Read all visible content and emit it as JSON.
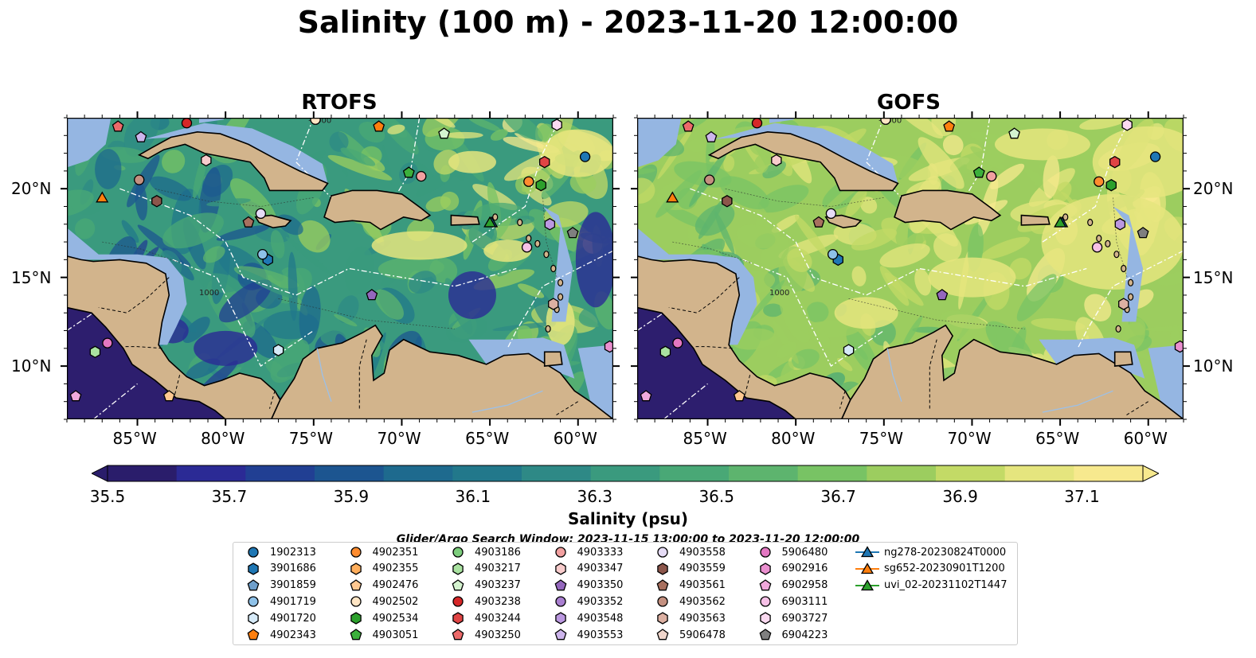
{
  "title": "Salinity (100 m) - 2023-11-20 12:00:00",
  "panels": [
    {
      "name": "RTOFS",
      "model": "rtofs"
    },
    {
      "name": "GOFS",
      "model": "gofs"
    }
  ],
  "axes": {
    "lon_ticks": [
      "85°W",
      "80°W",
      "75°W",
      "70°W",
      "65°W",
      "60°W"
    ],
    "lon_values": [
      -85,
      -80,
      -75,
      -70,
      -65,
      -60
    ],
    "lat_ticks": [
      "20°N",
      "15°N",
      "10°N"
    ],
    "lat_values": [
      20,
      15,
      10
    ],
    "lon_range": [
      -89,
      -58
    ],
    "lat_range": [
      7,
      24
    ]
  },
  "colorbar": {
    "label": "Salinity (psu)",
    "tick_labels": [
      "35.5",
      "35.7",
      "35.9",
      "36.1",
      "36.3",
      "36.5",
      "36.7",
      "36.9",
      "37.1"
    ],
    "range": [
      35.5,
      37.2
    ],
    "colors": [
      "#2a1d6b",
      "#2b2a95",
      "#213f93",
      "#1c5590",
      "#1e6a8e",
      "#22788b",
      "#2e8986",
      "#3a9a7e",
      "#49a876",
      "#5db46e",
      "#78c364",
      "#9ccd5f",
      "#c3da66",
      "#e5e57e",
      "#f7e98e"
    ]
  },
  "colors": {
    "land": "#d2b48c",
    "shelf": "#95b6e2",
    "deep_ocean": "#2d1e6e"
  },
  "map_labels": {
    "isobath": "1000",
    "rtofs_mid": "-1000",
    "gofs_mid": "-1000"
  },
  "search_window": "Glider/Argo Search Window: 2023-11-15 13:00:00 to 2023-11-20 12:00:00",
  "legend": [
    {
      "label": "1902313",
      "marker": "circle",
      "color": "#1f77b4"
    },
    {
      "label": "3901686",
      "marker": "hexagon",
      "color": "#1f77b4"
    },
    {
      "label": "3901859",
      "marker": "pentagon",
      "color": "#6f9fcb"
    },
    {
      "label": "4901719",
      "marker": "circle",
      "color": "#8ec1e8"
    },
    {
      "label": "4901720",
      "marker": "hexagon",
      "color": "#d6eaf8"
    },
    {
      "label": "4902343",
      "marker": "pentagon",
      "color": "#ff7f0e"
    },
    {
      "label": "4902351",
      "marker": "circle",
      "color": "#ff8c2e"
    },
    {
      "label": "4902355",
      "marker": "hexagon",
      "color": "#ffae5c"
    },
    {
      "label": "4902476",
      "marker": "pentagon",
      "color": "#ffc891"
    },
    {
      "label": "4902502",
      "marker": "circle",
      "color": "#ffe5c4"
    },
    {
      "label": "4902534",
      "marker": "hexagon",
      "color": "#2ca02c"
    },
    {
      "label": "4903051",
      "marker": "pentagon",
      "color": "#3cb03c"
    },
    {
      "label": "4903186",
      "marker": "circle",
      "color": "#7ccd7c"
    },
    {
      "label": "4903217",
      "marker": "hexagon",
      "color": "#a9e2a0"
    },
    {
      "label": "4903237",
      "marker": "pentagon",
      "color": "#d4f3cf"
    },
    {
      "label": "4903238",
      "marker": "circle",
      "color": "#d62728"
    },
    {
      "label": "4903244",
      "marker": "hexagon",
      "color": "#e04444"
    },
    {
      "label": "4903250",
      "marker": "pentagon",
      "color": "#ec6a6a"
    },
    {
      "label": "4903333",
      "marker": "circle",
      "color": "#f2a0a0"
    },
    {
      "label": "4903347",
      "marker": "hexagon",
      "color": "#f8cccc"
    },
    {
      "label": "4903350",
      "marker": "pentagon",
      "color": "#9467bd"
    },
    {
      "label": "4903352",
      "marker": "circle",
      "color": "#a97fd0"
    },
    {
      "label": "4903548",
      "marker": "hexagon",
      "color": "#bb98e0"
    },
    {
      "label": "4903553",
      "marker": "pentagon",
      "color": "#cdb5ec"
    },
    {
      "label": "4903558",
      "marker": "circle",
      "color": "#e6dcf6"
    },
    {
      "label": "4903559",
      "marker": "hexagon",
      "color": "#8c564b"
    },
    {
      "label": "4903561",
      "marker": "pentagon",
      "color": "#a8705f"
    },
    {
      "label": "4903562",
      "marker": "circle",
      "color": "#c49080"
    },
    {
      "label": "4903563",
      "marker": "hexagon",
      "color": "#dcb0a2"
    },
    {
      "label": "5906478",
      "marker": "pentagon",
      "color": "#f0d6cc"
    },
    {
      "label": "5906480",
      "marker": "circle",
      "color": "#e377c2"
    },
    {
      "label": "6902916",
      "marker": "hexagon",
      "color": "#ea8fcf"
    },
    {
      "label": "6902958",
      "marker": "pentagon",
      "color": "#f0a8db"
    },
    {
      "label": "6903111",
      "marker": "circle",
      "color": "#f6c0e6"
    },
    {
      "label": "6903727",
      "marker": "hexagon",
      "color": "#fbdaf1"
    },
    {
      "label": "6904223",
      "marker": "pentagon",
      "color": "#7f7f7f"
    },
    {
      "label": "ng278-20230824T0000",
      "marker": "triangle-line",
      "color": "#1f77b4"
    },
    {
      "label": "sg652-20230901T1200",
      "marker": "triangle-line",
      "color": "#ff7f0e"
    },
    {
      "label": "uvi_02-20231102T1447",
      "marker": "triangle-line",
      "color": "#2ca02c"
    }
  ],
  "floats": [
    {
      "id": "1902313",
      "lon": -59.6,
      "lat": 21.8
    },
    {
      "id": "3901686",
      "lon": -77.6,
      "lat": 16.0
    },
    {
      "id": "4901719",
      "lon": -77.9,
      "lat": 16.3
    },
    {
      "id": "4901720",
      "lon": -77.0,
      "lat": 10.9
    },
    {
      "id": "4902343",
      "lon": -71.3,
      "lat": 23.5
    },
    {
      "id": "4902351",
      "lon": -62.8,
      "lat": 20.4
    },
    {
      "id": "4902476",
      "lon": -83.2,
      "lat": 8.3
    },
    {
      "id": "4902502",
      "lon": -74.9,
      "lat": 23.9
    },
    {
      "id": "4902534",
      "lon": -62.1,
      "lat": 20.2
    },
    {
      "id": "4903051",
      "lon": -69.6,
      "lat": 20.9
    },
    {
      "id": "4903217",
      "lon": -87.4,
      "lat": 10.8
    },
    {
      "id": "4903237",
      "lon": -67.6,
      "lat": 23.1
    },
    {
      "id": "4903238",
      "lon": -82.2,
      "lat": 23.7
    },
    {
      "id": "4903244",
      "lon": -61.9,
      "lat": 21.5
    },
    {
      "id": "4903250",
      "lon": -86.1,
      "lat": 23.5
    },
    {
      "id": "4903333",
      "lon": -68.9,
      "lat": 20.7
    },
    {
      "id": "4903347",
      "lon": -81.1,
      "lat": 21.6
    },
    {
      "id": "4903350",
      "lon": -71.7,
      "lat": 14.0
    },
    {
      "id": "4903548",
      "lon": -61.6,
      "lat": 18.0
    },
    {
      "id": "4903553",
      "lon": -84.8,
      "lat": 22.9
    },
    {
      "id": "4903559",
      "lon": -83.9,
      "lat": 19.3
    },
    {
      "id": "4903561",
      "lon": -78.7,
      "lat": 18.1
    },
    {
      "id": "4903562",
      "lon": -84.9,
      "lat": 20.5
    },
    {
      "id": "4903563",
      "lon": -61.4,
      "lat": 13.5
    },
    {
      "id": "5906480",
      "lon": -86.7,
      "lat": 11.3
    },
    {
      "id": "6902916",
      "lon": -58.2,
      "lat": 11.1
    },
    {
      "id": "6902958",
      "lon": -88.5,
      "lat": 8.3
    },
    {
      "id": "6903111",
      "lon": -62.9,
      "lat": 16.7
    },
    {
      "id": "6903727",
      "lon": -61.2,
      "lat": 23.6
    },
    {
      "id": "6904223",
      "lon": -60.3,
      "lat": 17.5
    },
    {
      "id": "4903558",
      "lon": -78.0,
      "lat": 18.6
    }
  ],
  "gliders": [
    {
      "id": "ng278-20230824T0000",
      "lon": -64.9,
      "lat": 18.1,
      "color": "#1f77b4"
    },
    {
      "id": "sg652-20230901T1200",
      "lon": -87.0,
      "lat": 19.5,
      "color": "#ff7f0e"
    },
    {
      "id": "uvi_02-20231102T1447",
      "lon": -65.0,
      "lat": 18.1,
      "color": "#2ca02c"
    }
  ]
}
